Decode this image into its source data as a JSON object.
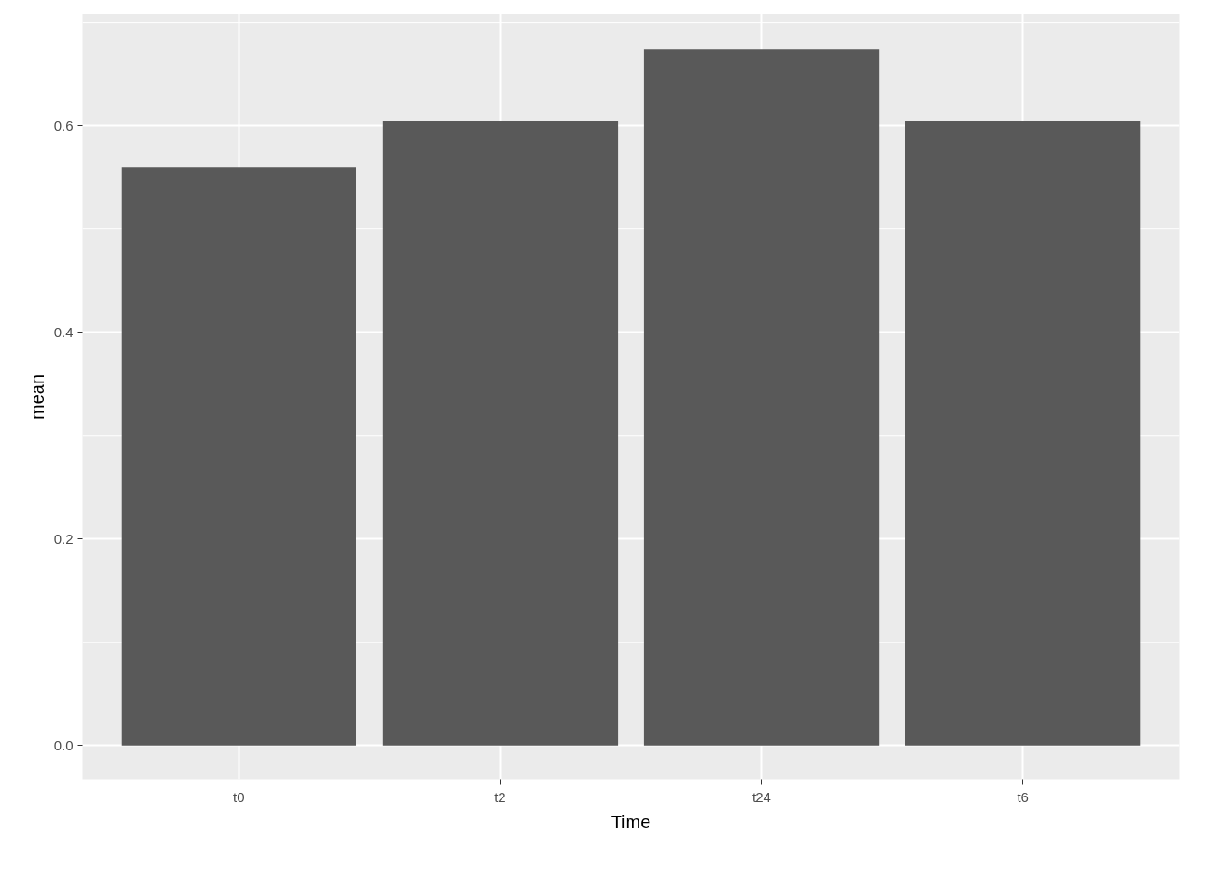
{
  "chart_data": {
    "type": "bar",
    "xlabel": "Time",
    "ylabel": "mean",
    "categories": [
      "t0",
      "t2",
      "t24",
      "t6"
    ],
    "values": [
      0.56,
      0.605,
      0.674,
      0.605
    ],
    "color": "#595959",
    "ylim": [
      -0.033,
      0.708
    ],
    "yticks": [
      {
        "value": 0,
        "label": "0.0"
      },
      {
        "value": 0.2,
        "label": "0.2"
      },
      {
        "value": 0.4,
        "label": "0.4"
      },
      {
        "value": 0.6,
        "label": "0.6"
      }
    ],
    "grid": true
  }
}
